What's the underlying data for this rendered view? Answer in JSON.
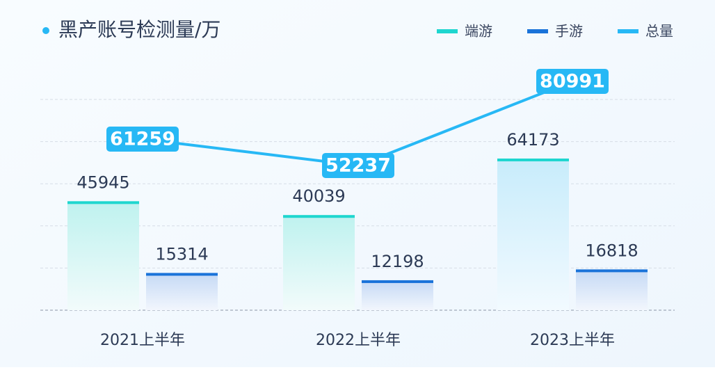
{
  "chart_data": {
    "type": "bar",
    "title": "黑产账号检测量/万",
    "categories": [
      "2021上半年",
      "2022上半年",
      "2023上半年"
    ],
    "series": [
      {
        "name": "端游",
        "color": "#1ed6cf",
        "values": [
          45945,
          40039,
          64173
        ]
      },
      {
        "name": "手游",
        "color": "#1a73d9",
        "values": [
          15314,
          12198,
          16818
        ]
      },
      {
        "name": "总量",
        "color": "#27b8f5",
        "type": "line",
        "axis": "y2",
        "values": [
          61259,
          52237,
          80991
        ]
      }
    ],
    "ylim": [
      0,
      90000
    ],
    "yticks": [
      0,
      18000,
      36000,
      54000,
      72000,
      90000
    ],
    "y2lim": [
      2800,
      74800
    ],
    "grid": true,
    "legend": "top-right"
  }
}
